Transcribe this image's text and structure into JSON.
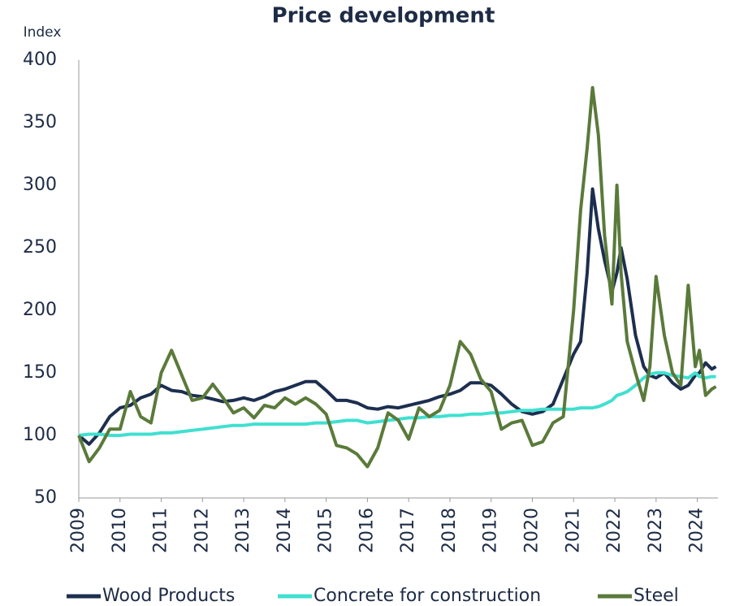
{
  "chart_data": {
    "type": "line",
    "title": "Price development",
    "y_label": "Index",
    "x": [
      2009,
      2009.25,
      2009.5,
      2009.75,
      2010,
      2010.25,
      2010.5,
      2010.75,
      2011,
      2011.25,
      2011.5,
      2011.75,
      2012,
      2012.25,
      2012.5,
      2012.75,
      2013,
      2013.25,
      2013.5,
      2013.75,
      2014,
      2014.25,
      2014.5,
      2014.75,
      2015,
      2015.25,
      2015.5,
      2015.75,
      2016,
      2016.25,
      2016.5,
      2016.75,
      2017,
      2017.25,
      2017.5,
      2017.75,
      2018,
      2018.25,
      2018.5,
      2018.75,
      2019,
      2019.25,
      2019.5,
      2019.75,
      2020,
      2020.25,
      2020.5,
      2020.75,
      2021,
      2021.17,
      2021.33,
      2021.46,
      2021.6,
      2021.75,
      2021.93,
      2022.05,
      2022.15,
      2022.3,
      2022.5,
      2022.7,
      2022.85,
      2023,
      2023.2,
      2023.4,
      2023.6,
      2023.78,
      2023.95,
      2024.05,
      2024.2,
      2024.35,
      2024.45
    ],
    "series": [
      {
        "name": "Wood Products",
        "color": "#1d2f4f",
        "values": [
          100,
          93,
          102,
          115,
          122,
          124,
          130,
          133,
          140,
          136,
          135,
          132,
          131,
          129,
          127,
          128,
          130,
          128,
          131,
          135,
          137,
          140,
          143,
          143,
          136,
          128,
          128,
          126,
          122,
          121,
          123,
          122,
          124,
          126,
          128,
          131,
          133,
          136,
          142,
          142,
          140,
          133,
          125,
          119,
          117,
          119,
          125,
          145,
          165,
          175,
          230,
          297,
          265,
          240,
          215,
          230,
          250,
          225,
          180,
          155,
          148,
          146,
          150,
          142,
          137,
          140,
          148,
          150,
          158,
          153,
          155
        ]
      },
      {
        "name": "Concrete for construction",
        "color": "#40e0d0",
        "values": [
          100,
          101,
          101,
          100,
          100,
          101,
          101,
          101,
          102,
          102,
          103,
          104,
          105,
          106,
          107,
          108,
          108,
          109,
          109,
          109,
          109,
          109,
          109,
          110,
          110,
          111,
          112,
          112,
          110,
          111,
          112,
          113,
          114,
          114,
          115,
          115,
          116,
          116,
          117,
          117,
          118,
          118,
          119,
          120,
          120,
          121,
          121,
          121,
          121,
          122,
          122,
          122,
          123,
          125,
          128,
          132,
          133,
          135,
          140,
          146,
          149,
          150,
          150,
          148,
          147,
          146,
          150,
          147,
          146,
          147,
          147
        ]
      },
      {
        "name": "Steel",
        "color": "#5a7a3a",
        "values": [
          100,
          79,
          90,
          105,
          105,
          135,
          115,
          110,
          150,
          168,
          148,
          128,
          130,
          141,
          130,
          118,
          122,
          114,
          124,
          122,
          130,
          125,
          130,
          125,
          117,
          92,
          90,
          85,
          75,
          90,
          118,
          112,
          97,
          122,
          115,
          120,
          140,
          175,
          165,
          145,
          135,
          105,
          110,
          112,
          92,
          95,
          110,
          115,
          200,
          280,
          330,
          378,
          340,
          260,
          205,
          300,
          230,
          175,
          150,
          128,
          155,
          227,
          180,
          150,
          140,
          220,
          155,
          168,
          132,
          137,
          139
        ]
      }
    ],
    "xlim": [
      2009,
      2024.5
    ],
    "xticks": [
      2009,
      2010,
      2011,
      2012,
      2013,
      2014,
      2015,
      2016,
      2017,
      2018,
      2019,
      2020,
      2021,
      2022,
      2023,
      2024
    ],
    "ylim": [
      50,
      400
    ],
    "yticks": [
      50,
      100,
      150,
      200,
      250,
      300,
      350,
      400
    ],
    "grid": false,
    "legend": "bottom"
  }
}
